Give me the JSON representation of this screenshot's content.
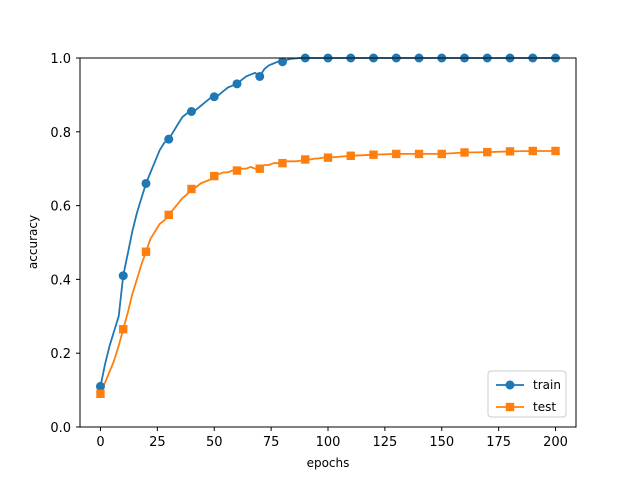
{
  "chart_data": {
    "type": "line",
    "title": "",
    "xlabel": "epochs",
    "ylabel": "accuracy",
    "xlim": [
      -9,
      209
    ],
    "ylim": [
      0.0,
      1.0
    ],
    "xticks": [
      0,
      25,
      50,
      75,
      100,
      125,
      150,
      175,
      200
    ],
    "yticks": [
      "0.0",
      "0.2",
      "0.4",
      "0.6",
      "0.8",
      "1.0"
    ],
    "grid": false,
    "legend_position": "lower-right",
    "series": [
      {
        "name": "train",
        "color": "#1f77b4",
        "marker": "circle",
        "marker_every": 10,
        "x": [
          0,
          2,
          4,
          6,
          8,
          10,
          12,
          14,
          16,
          18,
          20,
          22,
          24,
          26,
          28,
          30,
          32,
          34,
          36,
          38,
          40,
          42,
          44,
          46,
          48,
          50,
          52,
          54,
          56,
          58,
          60,
          62,
          64,
          66,
          68,
          70,
          72,
          74,
          76,
          78,
          80,
          82,
          84,
          86,
          88,
          90,
          92,
          94,
          96,
          98,
          100,
          110,
          120,
          130,
          140,
          150,
          160,
          170,
          180,
          190,
          200
        ],
        "values": [
          0.11,
          0.17,
          0.22,
          0.26,
          0.3,
          0.41,
          0.47,
          0.53,
          0.58,
          0.62,
          0.66,
          0.69,
          0.72,
          0.75,
          0.77,
          0.78,
          0.8,
          0.82,
          0.84,
          0.85,
          0.855,
          0.86,
          0.87,
          0.88,
          0.89,
          0.895,
          0.9,
          0.91,
          0.92,
          0.925,
          0.93,
          0.94,
          0.95,
          0.955,
          0.96,
          0.95,
          0.97,
          0.98,
          0.985,
          0.99,
          0.99,
          0.995,
          0.998,
          0.999,
          1.0,
          1.0,
          1.0,
          1.0,
          1.0,
          1.0,
          1.0,
          1.0,
          1.0,
          1.0,
          1.0,
          1.0,
          1.0,
          1.0,
          1.0,
          1.0,
          1.0
        ]
      },
      {
        "name": "test",
        "color": "#ff7f0e",
        "marker": "square",
        "marker_every": 10,
        "x": [
          0,
          2,
          4,
          6,
          8,
          10,
          12,
          14,
          16,
          18,
          20,
          22,
          24,
          26,
          28,
          30,
          32,
          34,
          36,
          38,
          40,
          42,
          44,
          46,
          48,
          50,
          52,
          54,
          56,
          58,
          60,
          62,
          64,
          66,
          68,
          70,
          72,
          74,
          76,
          78,
          80,
          82,
          84,
          86,
          88,
          90,
          92,
          94,
          96,
          98,
          100,
          110,
          120,
          130,
          140,
          150,
          160,
          170,
          180,
          190,
          200
        ],
        "values": [
          0.09,
          0.12,
          0.15,
          0.18,
          0.22,
          0.265,
          0.31,
          0.36,
          0.4,
          0.44,
          0.475,
          0.51,
          0.53,
          0.55,
          0.56,
          0.575,
          0.59,
          0.605,
          0.62,
          0.63,
          0.645,
          0.65,
          0.66,
          0.665,
          0.67,
          0.68,
          0.685,
          0.69,
          0.69,
          0.695,
          0.695,
          0.7,
          0.7,
          0.705,
          0.7,
          0.7,
          0.71,
          0.71,
          0.715,
          0.715,
          0.715,
          0.72,
          0.72,
          0.72,
          0.722,
          0.725,
          0.725,
          0.727,
          0.728,
          0.73,
          0.73,
          0.735,
          0.738,
          0.74,
          0.74,
          0.74,
          0.744,
          0.745,
          0.747,
          0.748,
          0.748
        ]
      }
    ]
  }
}
